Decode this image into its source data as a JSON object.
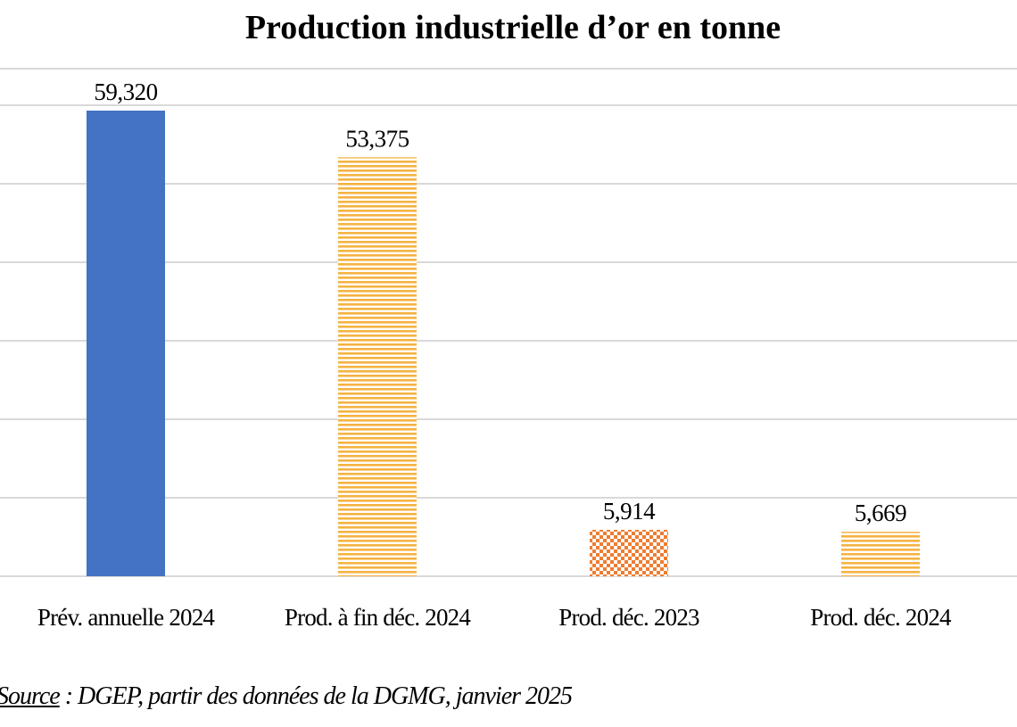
{
  "chart_data": {
    "type": "bar",
    "title": "Production industrielle d’or en tonne",
    "categories": [
      "Prév. annuelle 2024",
      "Prod. à fin déc. 2024",
      "Prod. déc. 2023",
      "Prod. déc. 2024"
    ],
    "values": [
      59.32,
      53.375,
      5.914,
      5.669
    ],
    "value_labels": [
      "59,320",
      "53,375",
      "5,914",
      "5,669"
    ],
    "bar_styles": [
      {
        "pattern": "solid",
        "color": "#4472C4"
      },
      {
        "pattern": "horizontal-stripes",
        "color": "#F5B342"
      },
      {
        "pattern": "checkerboard",
        "color": "#ED7D31"
      },
      {
        "pattern": "horizontal-stripes",
        "color": "#F5B342"
      }
    ],
    "ylim": [
      0,
      60
    ],
    "y_gridline_step": 10,
    "grid": true,
    "xlabel": "",
    "ylabel": ""
  },
  "source": {
    "label": "Source",
    "text": " : DGEP,  partir des données de la DGMG, janvier 2025"
  }
}
